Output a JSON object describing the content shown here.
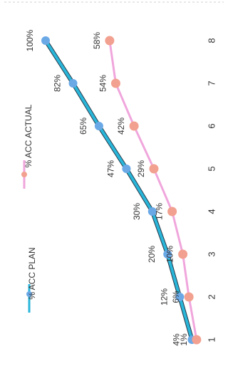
{
  "chart_data": {
    "type": "line",
    "orientation": "rotated-90",
    "categories": [
      "1",
      "2",
      "3",
      "4",
      "5",
      "6",
      "7",
      "8"
    ],
    "series": [
      {
        "name": "% ACC PLAN",
        "color": "#29b6d9",
        "marker_color": "#6aa8e6",
        "values": [
          4,
          12,
          20,
          30,
          47,
          65,
          82,
          100
        ],
        "labels": [
          "4%",
          "12%",
          "20%",
          "30%",
          "47%",
          "65%",
          "82%",
          "100%"
        ]
      },
      {
        "name": "% ACC ACTUAL",
        "color": "#f0a6dc",
        "marker_color": "#f2a08f",
        "values": [
          1,
          6,
          10,
          17,
          29,
          42,
          54,
          58
        ],
        "labels": [
          "1%",
          "6%",
          "10%",
          "17%",
          "29%",
          "42%",
          "54%",
          "58%"
        ]
      }
    ],
    "ylim": [
      0,
      100
    ],
    "grid": false,
    "legend_position": "top"
  }
}
